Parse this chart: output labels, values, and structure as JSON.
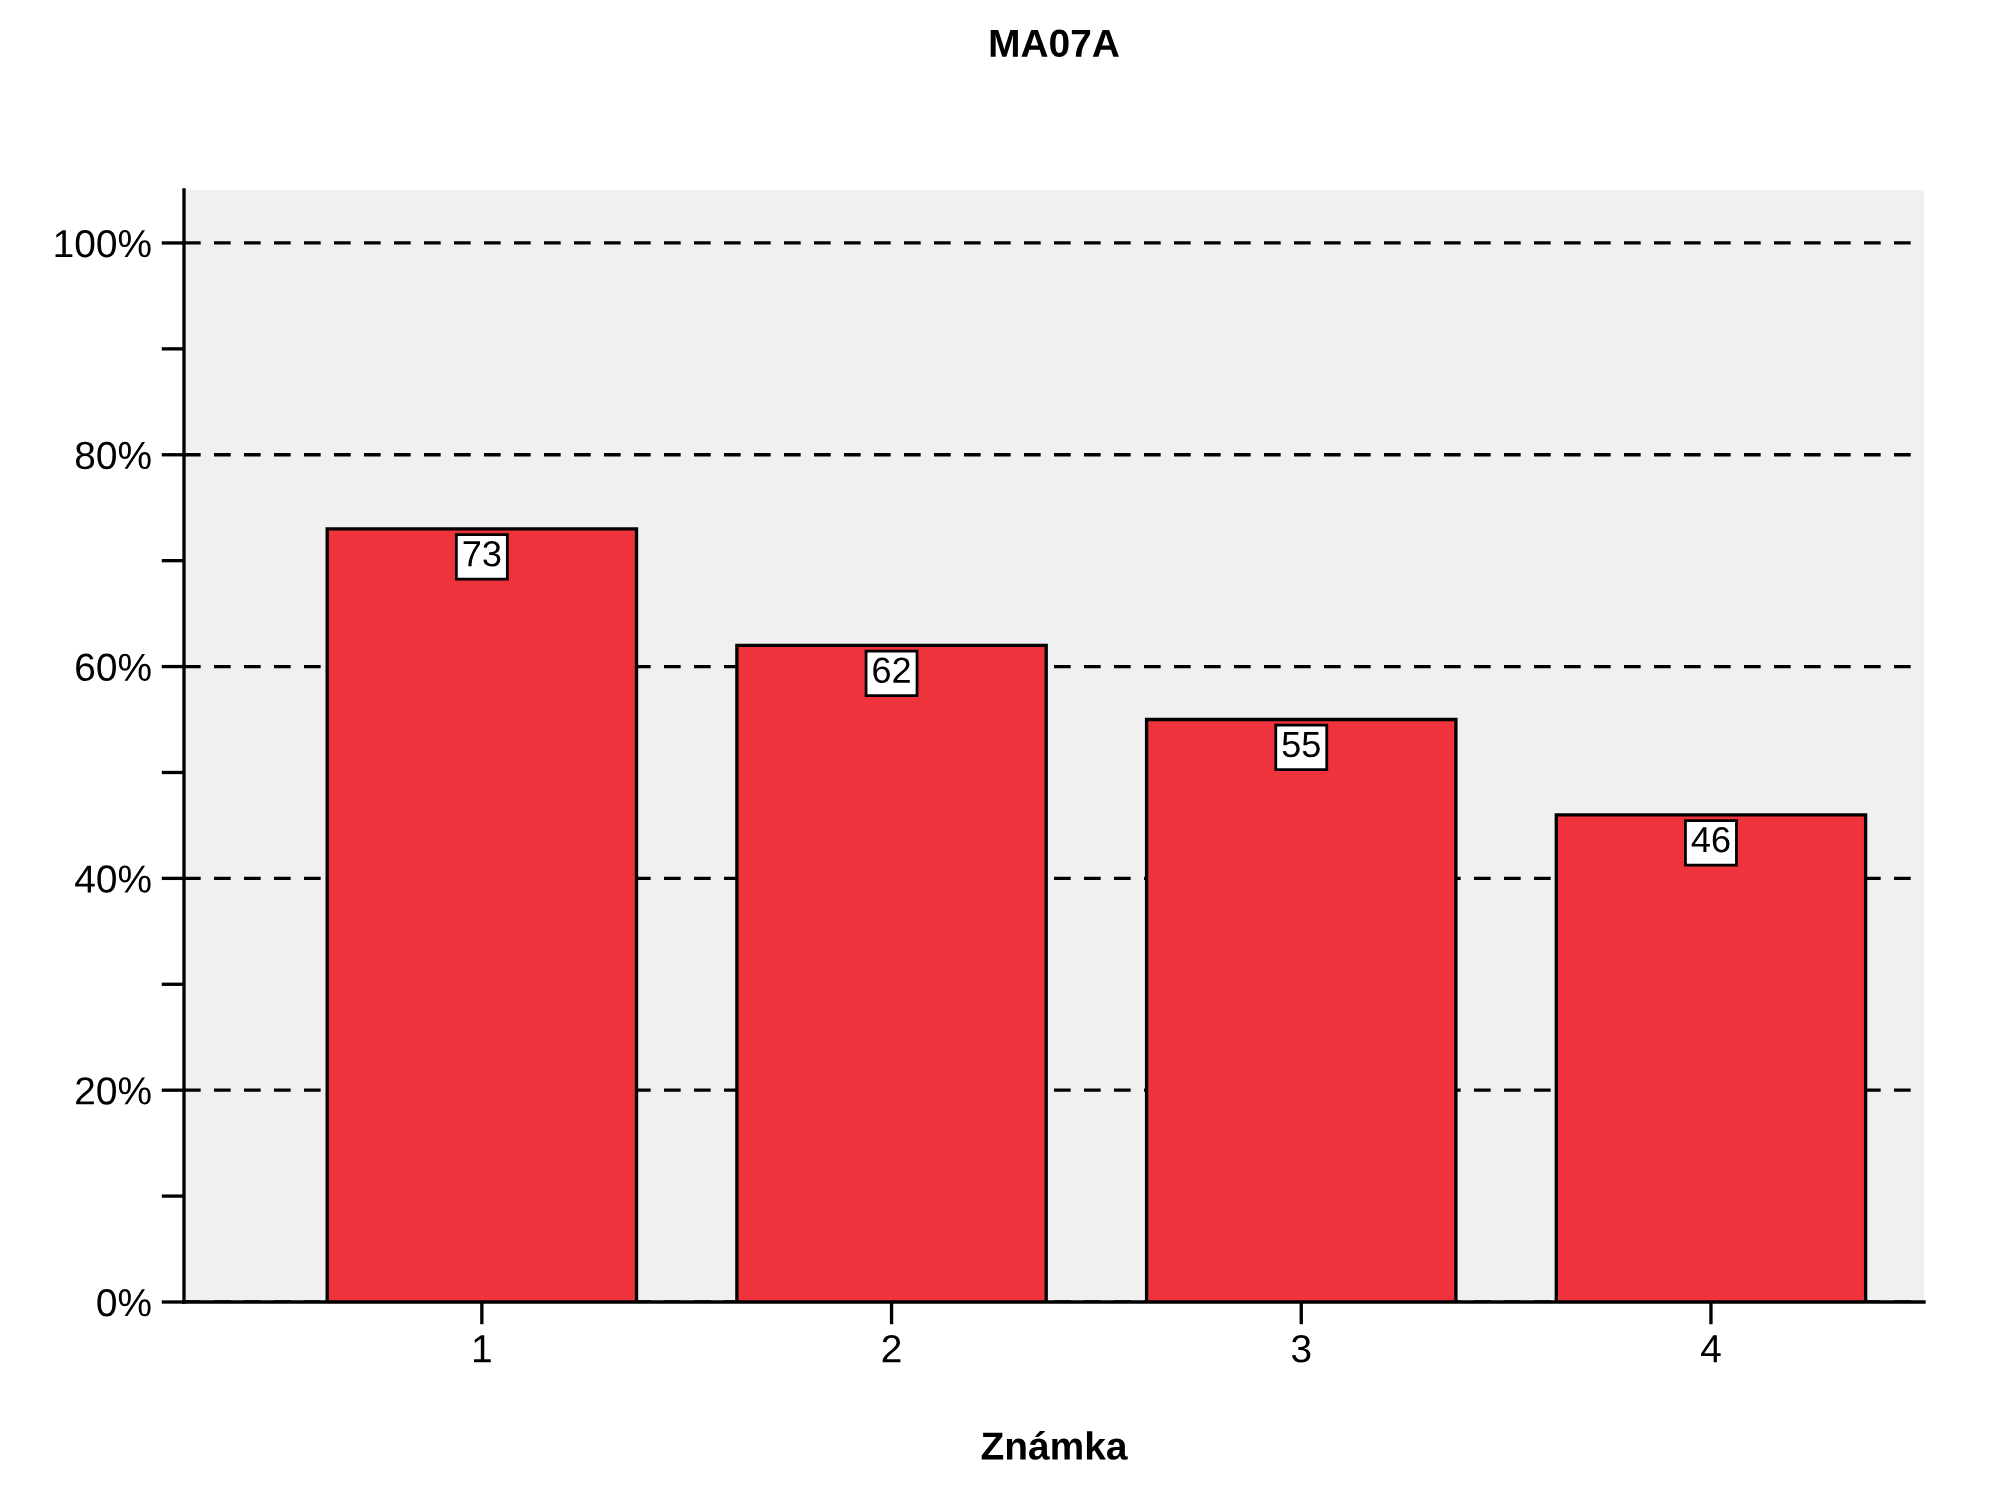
{
  "chart_data": {
    "type": "bar",
    "title": "MA07A",
    "xlabel": "Známka",
    "categories": [
      "1",
      "2",
      "3",
      "4"
    ],
    "series": [
      {
        "color": "#ef333d",
        "values": [
          73,
          62,
          55,
          46
        ]
      }
    ],
    "ylim": [
      0,
      105
    ],
    "yticks": [
      {
        "value": 0,
        "label": "0%"
      },
      {
        "value": 10,
        "label": null
      },
      {
        "value": 20,
        "label": "20%"
      },
      {
        "value": 30,
        "label": null
      },
      {
        "value": 40,
        "label": "40%"
      },
      {
        "value": 50,
        "label": null
      },
      {
        "value": 60,
        "label": "60%"
      },
      {
        "value": 70,
        "label": null
      },
      {
        "value": 80,
        "label": "80%"
      },
      {
        "value": 90,
        "label": null
      },
      {
        "value": 100,
        "label": "100%"
      }
    ],
    "grid": "y",
    "data_labels": true
  }
}
